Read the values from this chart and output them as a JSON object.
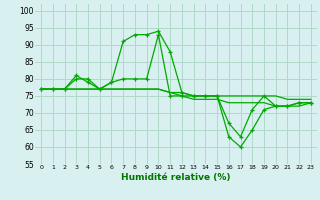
{
  "xlabel": "Humidité relative (%)",
  "bg_color": "#d8f0f0",
  "grid_color": "#b0d8c8",
  "line_color": "#00aa00",
  "xlim": [
    -0.5,
    23.5
  ],
  "ylim": [
    55,
    102
  ],
  "xticks": [
    0,
    1,
    2,
    3,
    4,
    5,
    6,
    7,
    8,
    9,
    10,
    11,
    12,
    13,
    14,
    15,
    16,
    17,
    18,
    19,
    20,
    21,
    22,
    23
  ],
  "yticks": [
    55,
    60,
    65,
    70,
    75,
    80,
    85,
    90,
    95,
    100
  ],
  "line1": [
    77,
    77,
    77,
    81,
    79,
    77,
    79,
    91,
    93,
    93,
    94,
    88,
    76,
    75,
    75,
    75,
    63,
    60,
    65,
    71,
    72,
    72,
    73,
    73
  ],
  "line2": [
    77,
    77,
    77,
    80,
    80,
    77,
    79,
    80,
    80,
    80,
    93,
    75,
    75,
    75,
    75,
    75,
    67,
    63,
    71,
    75,
    72,
    72,
    73,
    73
  ],
  "line3": [
    77,
    77,
    77,
    77,
    77,
    77,
    77,
    77,
    77,
    77,
    77,
    76,
    76,
    75,
    75,
    75,
    75,
    75,
    75,
    75,
    75,
    74,
    74,
    74
  ],
  "line4": [
    77,
    77,
    77,
    77,
    77,
    77,
    77,
    77,
    77,
    77,
    77,
    76,
    75,
    74,
    74,
    74,
    73,
    73,
    73,
    73,
    72,
    72,
    72,
    73
  ],
  "xlabel_fontsize": 6.5,
  "ytick_fontsize": 5.5,
  "xtick_fontsize": 4.5
}
